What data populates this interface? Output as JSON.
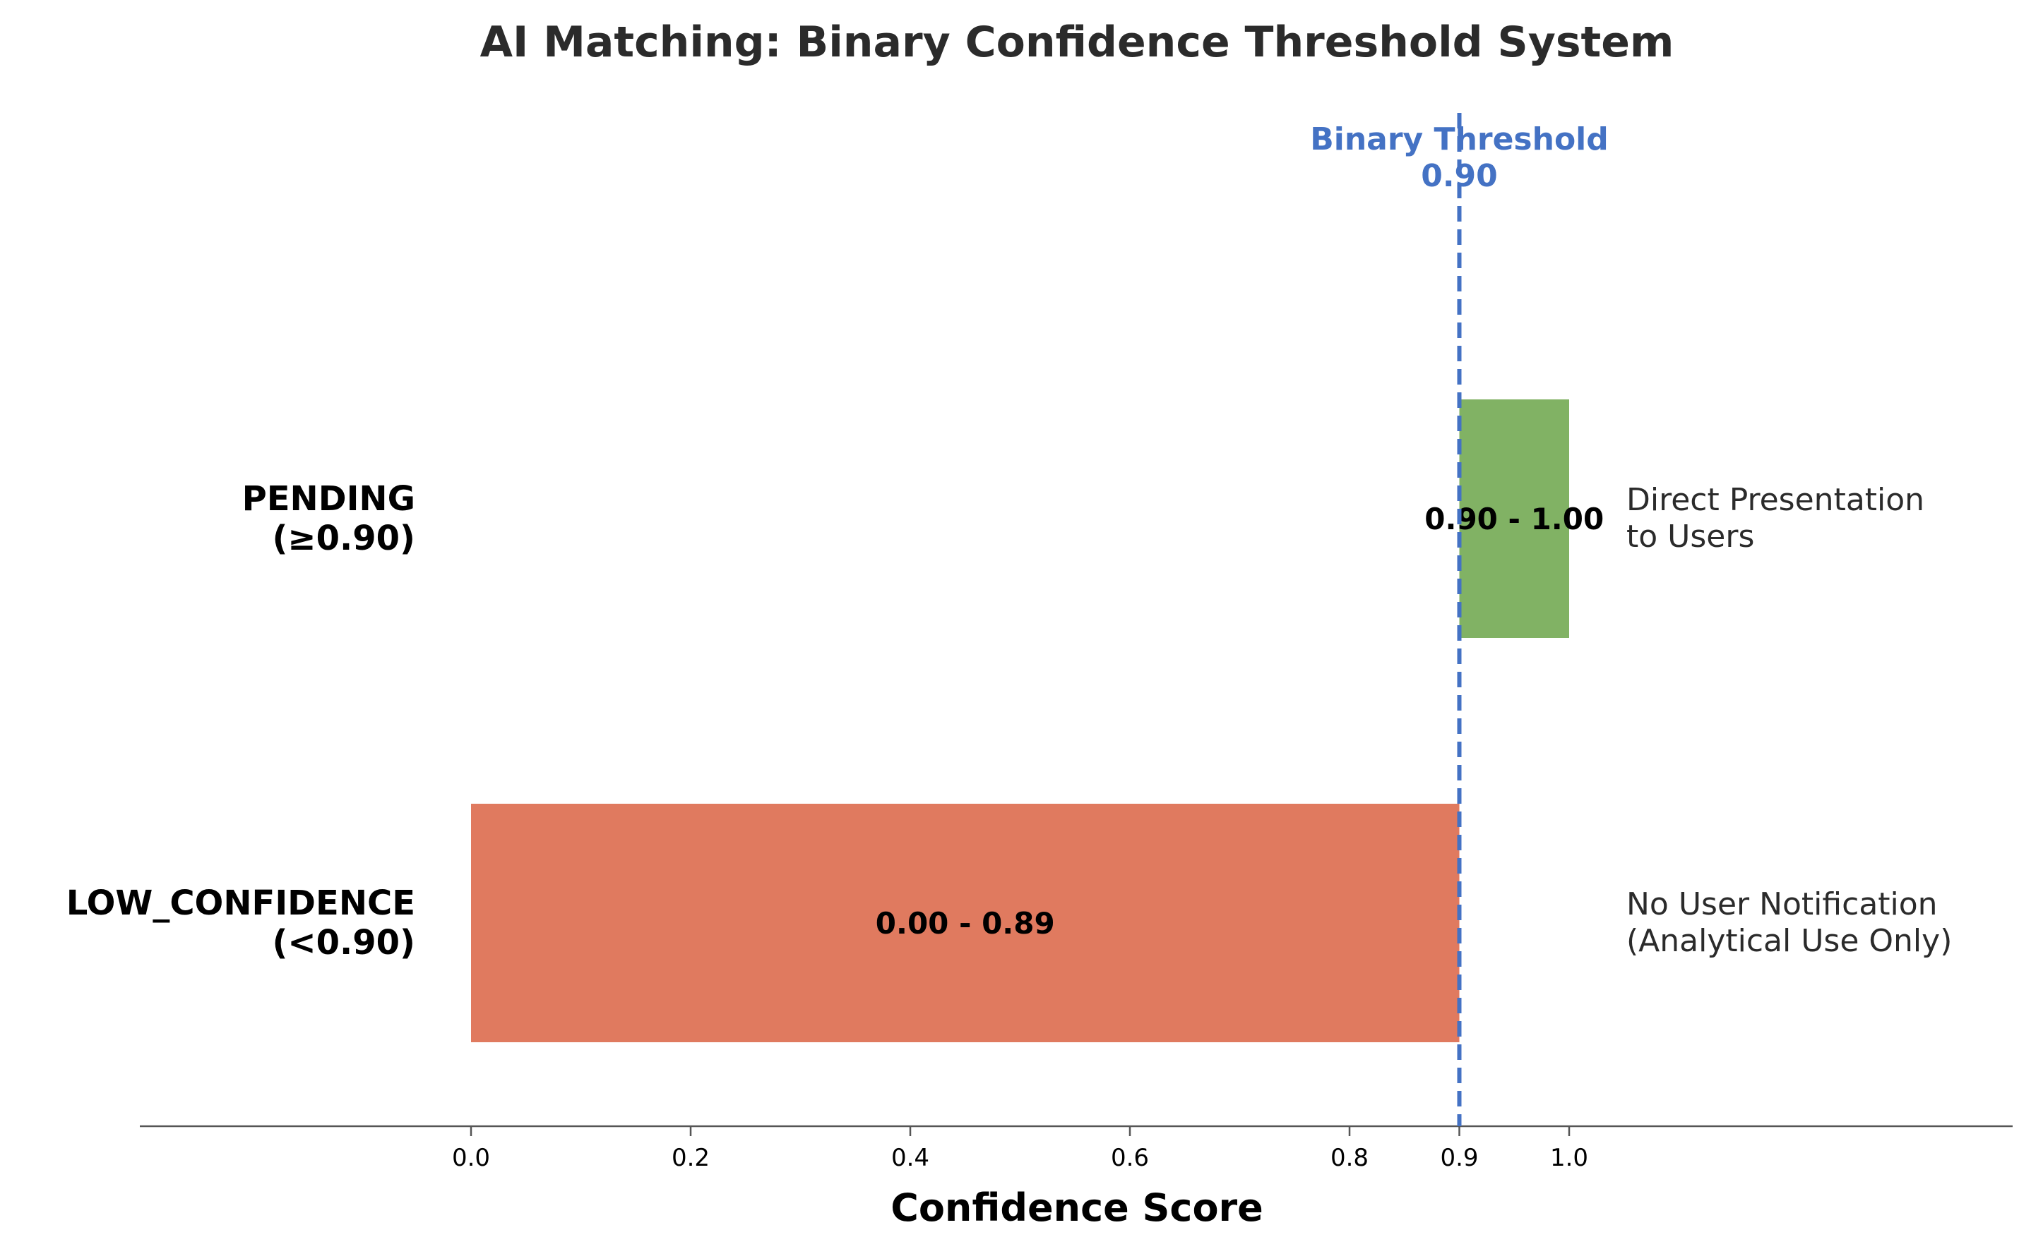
{
  "chart_data": {
    "type": "bar",
    "orientation": "horizontal",
    "title": "AI Matching: Binary Confidence Threshold System",
    "xlabel": "Confidence Score",
    "ylabel": "",
    "xlim": [
      -0.3,
      1.4
    ],
    "xticks": [
      0.0,
      0.2,
      0.4,
      0.6,
      0.8,
      0.9,
      1.0
    ],
    "xtick_labels": [
      "0.0",
      "0.2",
      "0.4",
      "0.6",
      "0.8",
      "0.9",
      "1.0"
    ],
    "grid": false,
    "bars": [
      {
        "category_lines": [
          "LOW_CONFIDENCE",
          "(<0.90)"
        ],
        "start": 0.0,
        "end": 0.9,
        "range_label": "0.00 - 0.89",
        "annotation_lines": [
          "No User Notification",
          "(Analytical Use Only)"
        ],
        "color": "#e07a5f"
      },
      {
        "category_lines": [
          "PENDING",
          "(≥0.90)"
        ],
        "start": 0.9,
        "end": 1.0,
        "range_label": "0.90 - 1.00",
        "annotation_lines": [
          "Direct Presentation",
          "to Users"
        ],
        "color": "#81b264"
      }
    ],
    "threshold": {
      "value": 0.9,
      "label_lines": [
        "Binary Threshold",
        "0.90"
      ],
      "color": "#4472c4"
    }
  }
}
